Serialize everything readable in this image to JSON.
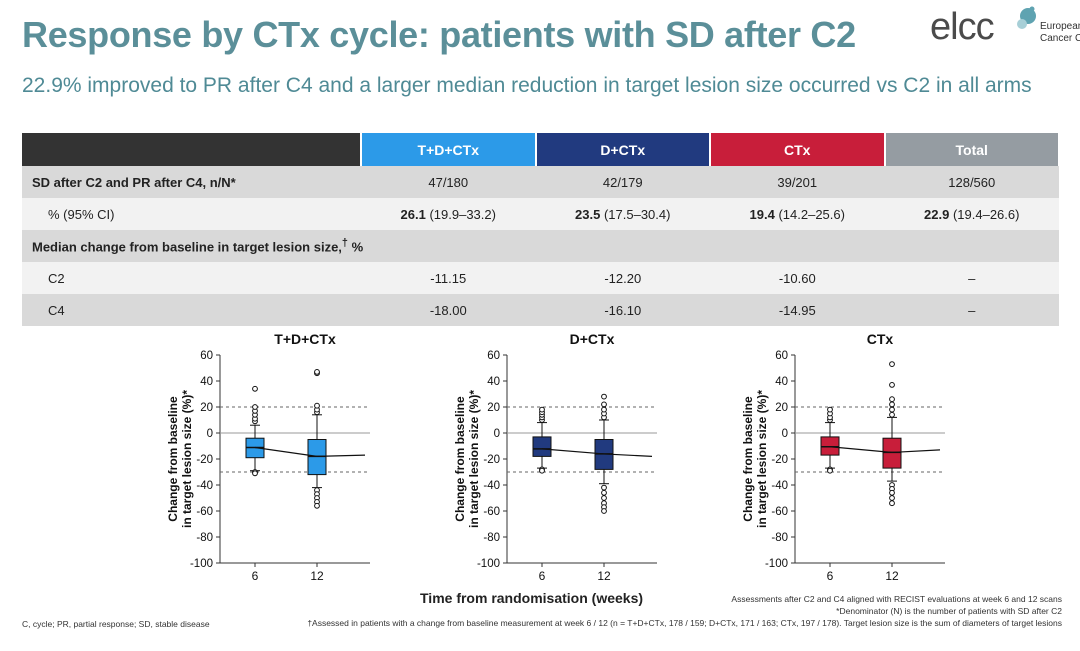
{
  "header": {
    "title": "Response by CTx cycle: patients with SD after C2",
    "subtitle": "22.9% improved to PR after C4 and a larger median reduction in target lesion size occurred vs C2 in all arms",
    "logo_word": "elcc",
    "logo_org_line1": "European",
    "logo_org_line2": "Cancer Co"
  },
  "colors": {
    "tdctx": "#2c9ae8",
    "dctx": "#213a7f",
    "ctx": "#c81e3a",
    "total": "#959ca2",
    "title": "#5b8f99"
  },
  "table": {
    "columns": [
      "T+D+CTx",
      "D+CTx",
      "CTx",
      "Total"
    ],
    "row_sd_label": "SD after C2 and PR after C4, n/N*",
    "row_sd_values": [
      "47/180",
      "42/179",
      "39/201",
      "128/560"
    ],
    "row_pct_label": "% (95% CI)",
    "row_pct_bold": [
      "26.1",
      "23.5",
      "19.4",
      "22.9"
    ],
    "row_pct_ci": [
      " (19.9–33.2)",
      " (17.5–30.4)",
      " (14.2–25.6)",
      " (19.4–26.6)"
    ],
    "section_label": "Median change from baseline in target lesion size,",
    "section_sup": "†",
    "section_unit": " %",
    "row_c2_label": "C2",
    "row_c2_values": [
      "-11.15",
      "-12.20",
      "-10.60",
      "–"
    ],
    "row_c4_label": "C4",
    "row_c4_values": [
      "-18.00",
      "-16.10",
      "-14.95",
      "–"
    ]
  },
  "chart_data": [
    {
      "type": "box",
      "title": "T+D+CTx",
      "ylabel": "Change from baseline in target lesion size (%)*",
      "yticks": [
        60,
        40,
        20,
        0,
        -20,
        -40,
        -60,
        -80,
        -100
      ],
      "ylim": [
        -100,
        60
      ],
      "categories": [
        "6",
        "12"
      ],
      "reference_lines": [
        20,
        -30
      ],
      "color": "#2c9ae8",
      "boxes": [
        {
          "x": "6",
          "q1": -19,
          "median": -11.15,
          "q3": -4,
          "whisker_low": -29,
          "whisker_high": 6,
          "outliers": [
            -30,
            -31,
            9,
            11,
            14,
            17,
            20,
            34
          ]
        },
        {
          "x": "12",
          "q1": -32,
          "median": -18.0,
          "q3": -5,
          "whisker_low": -42,
          "whisker_high": 14,
          "outliers": [
            -44,
            -47,
            -50,
            -53,
            -56,
            16,
            18,
            21,
            46,
            47
          ]
        }
      ],
      "trend": [
        -11.15,
        -18.0,
        -17
      ]
    },
    {
      "type": "box",
      "title": "D+CTx",
      "ylabel": "Change from baseline in target lesion size (%)*",
      "yticks": [
        60,
        40,
        20,
        0,
        -20,
        -40,
        -60,
        -80,
        -100
      ],
      "ylim": [
        -100,
        60
      ],
      "categories": [
        "6",
        "12"
      ],
      "reference_lines": [
        20,
        -30
      ],
      "color": "#213a7f",
      "boxes": [
        {
          "x": "6",
          "q1": -18,
          "median": -12.2,
          "q3": -3,
          "whisker_low": -27,
          "whisker_high": 8,
          "outliers": [
            -28,
            -29,
            10,
            12,
            14,
            16,
            18
          ]
        },
        {
          "x": "12",
          "q1": -28,
          "median": -16.1,
          "q3": -5,
          "whisker_low": -39,
          "whisker_high": 10,
          "outliers": [
            -42,
            -46,
            -50,
            -54,
            -57,
            -60,
            12,
            15,
            18,
            22,
            28
          ]
        }
      ],
      "trend": [
        -12.2,
        -16.1,
        -18
      ]
    },
    {
      "type": "box",
      "title": "CTx",
      "ylabel": "Change from baseline in target lesion size (%)*",
      "yticks": [
        60,
        40,
        20,
        0,
        -20,
        -40,
        -60,
        -80,
        -100
      ],
      "ylim": [
        -100,
        60
      ],
      "categories": [
        "6",
        "12"
      ],
      "reference_lines": [
        20,
        -30
      ],
      "color": "#c81e3a",
      "boxes": [
        {
          "x": "6",
          "q1": -17,
          "median": -10.6,
          "q3": -3,
          "whisker_low": -27,
          "whisker_high": 8,
          "outliers": [
            -28,
            -29,
            10,
            12,
            15,
            18
          ]
        },
        {
          "x": "12",
          "q1": -27,
          "median": -14.95,
          "q3": -4,
          "whisker_low": -37,
          "whisker_high": 12,
          "outliers": [
            -40,
            -43,
            -46,
            -50,
            -54,
            14,
            18,
            22,
            26,
            37,
            53
          ]
        }
      ],
      "trend": [
        -10.6,
        -14.95,
        -13
      ]
    }
  ],
  "axes": {
    "x_title": "Time from randomisation (weeks)"
  },
  "footnotes": {
    "left": "C, cycle; PR, partial response; SD, stable disease",
    "right1": "Assessments after C2 and C4 aligned with RECIST evaluations at week 6 and 12 scans",
    "right2": "*Denominator (N) is the number of patients with SD after C2",
    "bottom": "†Assessed in patients with a change from baseline measurement at week 6 / 12 (n = T+D+CTx, 178 / 159; D+CTx, 171 / 163; CTx, 197 / 178). Target lesion size is the sum of diameters of target lesions"
  }
}
